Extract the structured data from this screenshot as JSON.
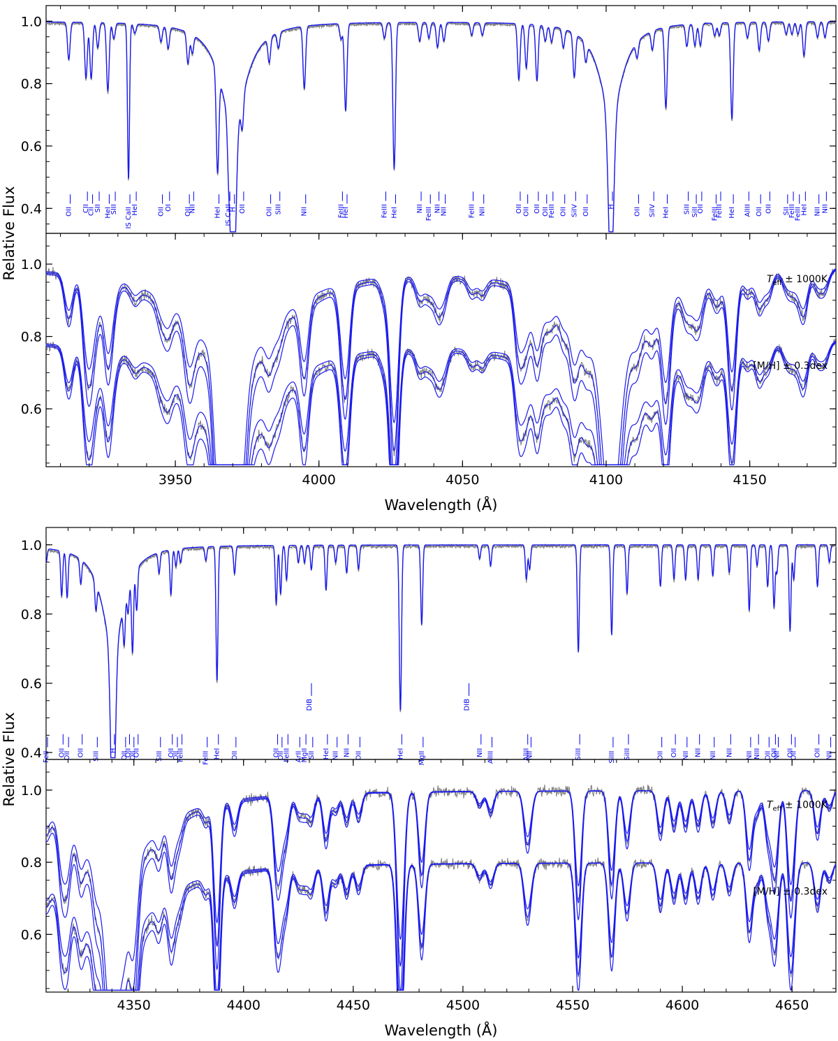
{
  "colors": {
    "observed": "#808080",
    "model": "#1a1aee",
    "label": "#0000ee",
    "axis": "#000000"
  },
  "chart_data": [
    {
      "type": "line",
      "name": "blue-range",
      "xlabel": "Wavelength (Å)",
      "ylabel": "Relative Flux",
      "xlim": [
        3905,
        4180
      ],
      "ylim_top": [
        0.32,
        1.05
      ],
      "ylim_bottom": [
        0.44,
        1.085
      ],
      "x_ticks": [
        3950,
        4000,
        4050,
        4100,
        4150
      ],
      "y_ticks_top": [
        0.4,
        0.6,
        0.8,
        1.0
      ],
      "y_ticks_bottom": [
        0.6,
        0.8,
        1.0
      ],
      "annotations": [
        "T_eff ± 1000K",
        "[M/H] ± 0.3dex"
      ],
      "lines": [
        {
          "x": 3912.9,
          "ion": "OII",
          "depth": 0.12
        },
        {
          "x": 3918.9,
          "ion": "CII",
          "depth": 0.18
        },
        {
          "x": 3920.7,
          "ion": "CII",
          "depth": 0.18
        },
        {
          "x": 3923.0,
          "ion": "SII",
          "depth": 0.08
        },
        {
          "x": 3926.5,
          "ion": "HeI",
          "depth": 0.22
        },
        {
          "x": 3928.6,
          "ion": "SIII",
          "depth": 0.05
        },
        {
          "x": 3933.7,
          "ion": "IS CaII",
          "depth": 0.5,
          "w": 0.35,
          "sharp": true
        },
        {
          "x": 3935.9,
          "ion": "HeI",
          "depth": 0.03
        },
        {
          "x": 3945.0,
          "ion": "OII",
          "depth": 0.05
        },
        {
          "x": 3947.5,
          "ion": "OI",
          "depth": 0.07
        },
        {
          "x": 3954.4,
          "ion": "OII",
          "depth": 0.1
        },
        {
          "x": 3955.9,
          "ion": "NII",
          "depth": 0.06
        },
        {
          "x": 3964.7,
          "ion": "HeI",
          "depth": 0.32
        },
        {
          "x": 3968.5,
          "ion": "IS CaII",
          "depth": 0.1,
          "w": 0.4
        },
        {
          "x": 3970.1,
          "ion": "H",
          "depth": 0.6,
          "w": 0.9,
          "wing": 5.5
        },
        {
          "x": 3973.3,
          "ion": "OII",
          "depth": 0.1
        },
        {
          "x": 3982.7,
          "ion": "OII",
          "depth": 0.08
        },
        {
          "x": 3985.9,
          "ion": "SIII",
          "depth": 0.05
        },
        {
          "x": 3994.9,
          "ion": "NII",
          "depth": 0.2
        },
        {
          "x": 4007.7,
          "ion": "FeIII",
          "depth": 0.05
        },
        {
          "x": 4009.3,
          "ion": "HeI",
          "depth": 0.28
        },
        {
          "x": 4022.8,
          "ion": "FeIII",
          "depth": 0.05
        },
        {
          "x": 4026.2,
          "ion": "HeI",
          "depth": 0.47,
          "w": 0.45
        },
        {
          "x": 4035.1,
          "ion": "NII",
          "depth": 0.06
        },
        {
          "x": 4038.3,
          "ion": "FeIII",
          "depth": 0.05
        },
        {
          "x": 4041.3,
          "ion": "NII",
          "depth": 0.08
        },
        {
          "x": 4043.5,
          "ion": "NII",
          "depth": 0.06
        },
        {
          "x": 4053.2,
          "ion": "FeIII",
          "depth": 0.04
        },
        {
          "x": 4056.9,
          "ion": "NII",
          "depth": 0.04
        },
        {
          "x": 4069.6,
          "ion": "OII",
          "depth": 0.18
        },
        {
          "x": 4072.2,
          "ion": "OII",
          "depth": 0.14
        },
        {
          "x": 4075.9,
          "ion": "OII",
          "depth": 0.18
        },
        {
          "x": 4078.8,
          "ion": "OII",
          "depth": 0.05
        },
        {
          "x": 4081.0,
          "ion": "FeIII",
          "depth": 0.05
        },
        {
          "x": 4085.1,
          "ion": "OII",
          "depth": 0.06
        },
        {
          "x": 4088.9,
          "ion": "SiIV",
          "depth": 0.14
        },
        {
          "x": 4092.9,
          "ion": "OII",
          "depth": 0.06
        },
        {
          "x": 4101.7,
          "ion": "H",
          "depth": 0.53,
          "w": 0.9,
          "wing": 5.0
        },
        {
          "x": 4110.8,
          "ion": "OII",
          "depth": 0.05
        },
        {
          "x": 4116.1,
          "ion": "SiIV",
          "depth": 0.06
        },
        {
          "x": 4120.8,
          "ion": "HeI",
          "depth": 0.26
        },
        {
          "x": 4128.1,
          "ion": "SiII",
          "depth": 0.07
        },
        {
          "x": 4130.9,
          "ion": "SiII",
          "depth": 0.07
        },
        {
          "x": 4132.8,
          "ion": "OII",
          "depth": 0.07
        },
        {
          "x": 4137.8,
          "ion": "FeIII",
          "depth": 0.04
        },
        {
          "x": 4139.4,
          "ion": "FeIII",
          "depth": 0.04
        },
        {
          "x": 4143.8,
          "ion": "HeI",
          "depth": 0.31
        },
        {
          "x": 4149.2,
          "ion": "AlIII",
          "depth": 0.05
        },
        {
          "x": 4153.3,
          "ion": "OII",
          "depth": 0.09
        },
        {
          "x": 4156.5,
          "ion": "OII",
          "depth": 0.06
        },
        {
          "x": 4162.7,
          "ion": "SII",
          "depth": 0.04
        },
        {
          "x": 4164.7,
          "ion": "FeIII",
          "depth": 0.04
        },
        {
          "x": 4166.8,
          "ion": "FeIII",
          "depth": 0.04
        },
        {
          "x": 4168.9,
          "ion": "HeI",
          "depth": 0.11
        },
        {
          "x": 4173.6,
          "ion": "NII",
          "depth": 0.05
        },
        {
          "x": 4176.2,
          "ion": "NII",
          "depth": 0.05
        }
      ],
      "dib": []
    },
    {
      "type": "line",
      "name": "green-range",
      "xlabel": "Wavelength (Å)",
      "ylabel": "Relative Flux",
      "xlim": [
        4310,
        4670
      ],
      "ylim_top": [
        0.38,
        1.05
      ],
      "ylim_bottom": [
        0.44,
        1.085
      ],
      "x_ticks": [
        4350,
        4400,
        4450,
        4500,
        4550,
        4600,
        4650
      ],
      "y_ticks_top": [
        0.4,
        0.6,
        0.8,
        1.0
      ],
      "y_ticks_bottom": [
        0.6,
        0.8,
        1.0
      ],
      "annotations": [
        "T_eff ± 1000K",
        "[M/H] ± 0.3dex"
      ],
      "lines": [
        {
          "x": 4310.0,
          "ion": "FeII",
          "depth": 0.04
        },
        {
          "x": 4317.1,
          "ion": "OII",
          "depth": 0.13
        },
        {
          "x": 4319.6,
          "ion": "OII",
          "depth": 0.13
        },
        {
          "x": 4325.8,
          "ion": "OII",
          "depth": 0.07
        },
        {
          "x": 4332.7,
          "ion": "SIII",
          "depth": 0.08
        },
        {
          "x": 4340.5,
          "ion": "H",
          "depth": 0.54,
          "w": 1.0,
          "wing": 6.0
        },
        {
          "x": 4345.6,
          "ion": "OII",
          "depth": 0.12
        },
        {
          "x": 4347.4,
          "ion": "OII",
          "depth": 0.07
        },
        {
          "x": 4349.4,
          "ion": "OII",
          "depth": 0.22
        },
        {
          "x": 4351.3,
          "ion": "OII",
          "depth": 0.12
        },
        {
          "x": 4361.5,
          "ion": "SIII",
          "depth": 0.06
        },
        {
          "x": 4366.9,
          "ion": "OII",
          "depth": 0.13
        },
        {
          "x": 4369.2,
          "ion": "OII",
          "depth": 0.05
        },
        {
          "x": 4371.3,
          "ion": "FeIII",
          "depth": 0.04
        },
        {
          "x": 4382.8,
          "ion": "FeIII",
          "depth": 0.04
        },
        {
          "x": 4387.9,
          "ion": "HeI",
          "depth": 0.39
        },
        {
          "x": 4395.9,
          "ion": "OII",
          "depth": 0.08
        },
        {
          "x": 4414.9,
          "ion": "OII",
          "depth": 0.17
        },
        {
          "x": 4416.9,
          "ion": "OII",
          "depth": 0.14
        },
        {
          "x": 4419.6,
          "ion": "FeIII",
          "depth": 0.1
        },
        {
          "x": 4425.0,
          "ion": "ArII",
          "depth": 0.05
        },
        {
          "x": 4427.8,
          "ion": "MgII",
          "depth": 0.05
        },
        {
          "x": 4430.9,
          "ion": "SII",
          "depth": 0.07
        },
        {
          "x": 4437.6,
          "ion": "HeI",
          "depth": 0.13
        },
        {
          "x": 4442.0,
          "ion": "NII",
          "depth": 0.05
        },
        {
          "x": 4447.0,
          "ion": "NII",
          "depth": 0.08
        },
        {
          "x": 4452.4,
          "ion": "OII",
          "depth": 0.07
        },
        {
          "x": 4471.5,
          "ion": "HeI",
          "depth": 0.48,
          "w": 0.5
        },
        {
          "x": 4481.2,
          "ion": "MgII",
          "depth": 0.23
        },
        {
          "x": 4507.6,
          "ion": "NII",
          "depth": 0.04
        },
        {
          "x": 4512.6,
          "ion": "AlIII",
          "depth": 0.06
        },
        {
          "x": 4528.9,
          "ion": "AlIII",
          "depth": 0.1
        },
        {
          "x": 4530.4,
          "ion": "NII",
          "depth": 0.07
        },
        {
          "x": 4552.6,
          "ion": "SiIII",
          "depth": 0.31
        },
        {
          "x": 4567.8,
          "ion": "SiIII",
          "depth": 0.26
        },
        {
          "x": 4574.8,
          "ion": "SiIII",
          "depth": 0.14
        },
        {
          "x": 4590.0,
          "ion": "OII",
          "depth": 0.12
        },
        {
          "x": 4596.2,
          "ion": "OII",
          "depth": 0.1
        },
        {
          "x": 4601.5,
          "ion": "NII",
          "depth": 0.1
        },
        {
          "x": 4607.2,
          "ion": "NII",
          "depth": 0.1
        },
        {
          "x": 4613.9,
          "ion": "NII",
          "depth": 0.09
        },
        {
          "x": 4621.4,
          "ion": "NII",
          "depth": 0.08
        },
        {
          "x": 4630.5,
          "ion": "NII",
          "depth": 0.19
        },
        {
          "x": 4634.1,
          "ion": "NIII",
          "depth": 0.06
        },
        {
          "x": 4638.9,
          "ion": "OII",
          "depth": 0.12
        },
        {
          "x": 4641.8,
          "ion": "OII",
          "depth": 0.18
        },
        {
          "x": 4643.1,
          "ion": "NII",
          "depth": 0.08
        },
        {
          "x": 4649.1,
          "ion": "OII",
          "depth": 0.25
        },
        {
          "x": 4650.8,
          "ion": "OII",
          "depth": 0.1
        },
        {
          "x": 4661.6,
          "ion": "OII",
          "depth": 0.12
        },
        {
          "x": 4667.0,
          "ion": "NII",
          "depth": 0.05
        }
      ],
      "dib": [
        {
          "x": 4430.0,
          "label": "DIB"
        },
        {
          "x": 4501.8,
          "label": "DIB"
        }
      ]
    }
  ]
}
